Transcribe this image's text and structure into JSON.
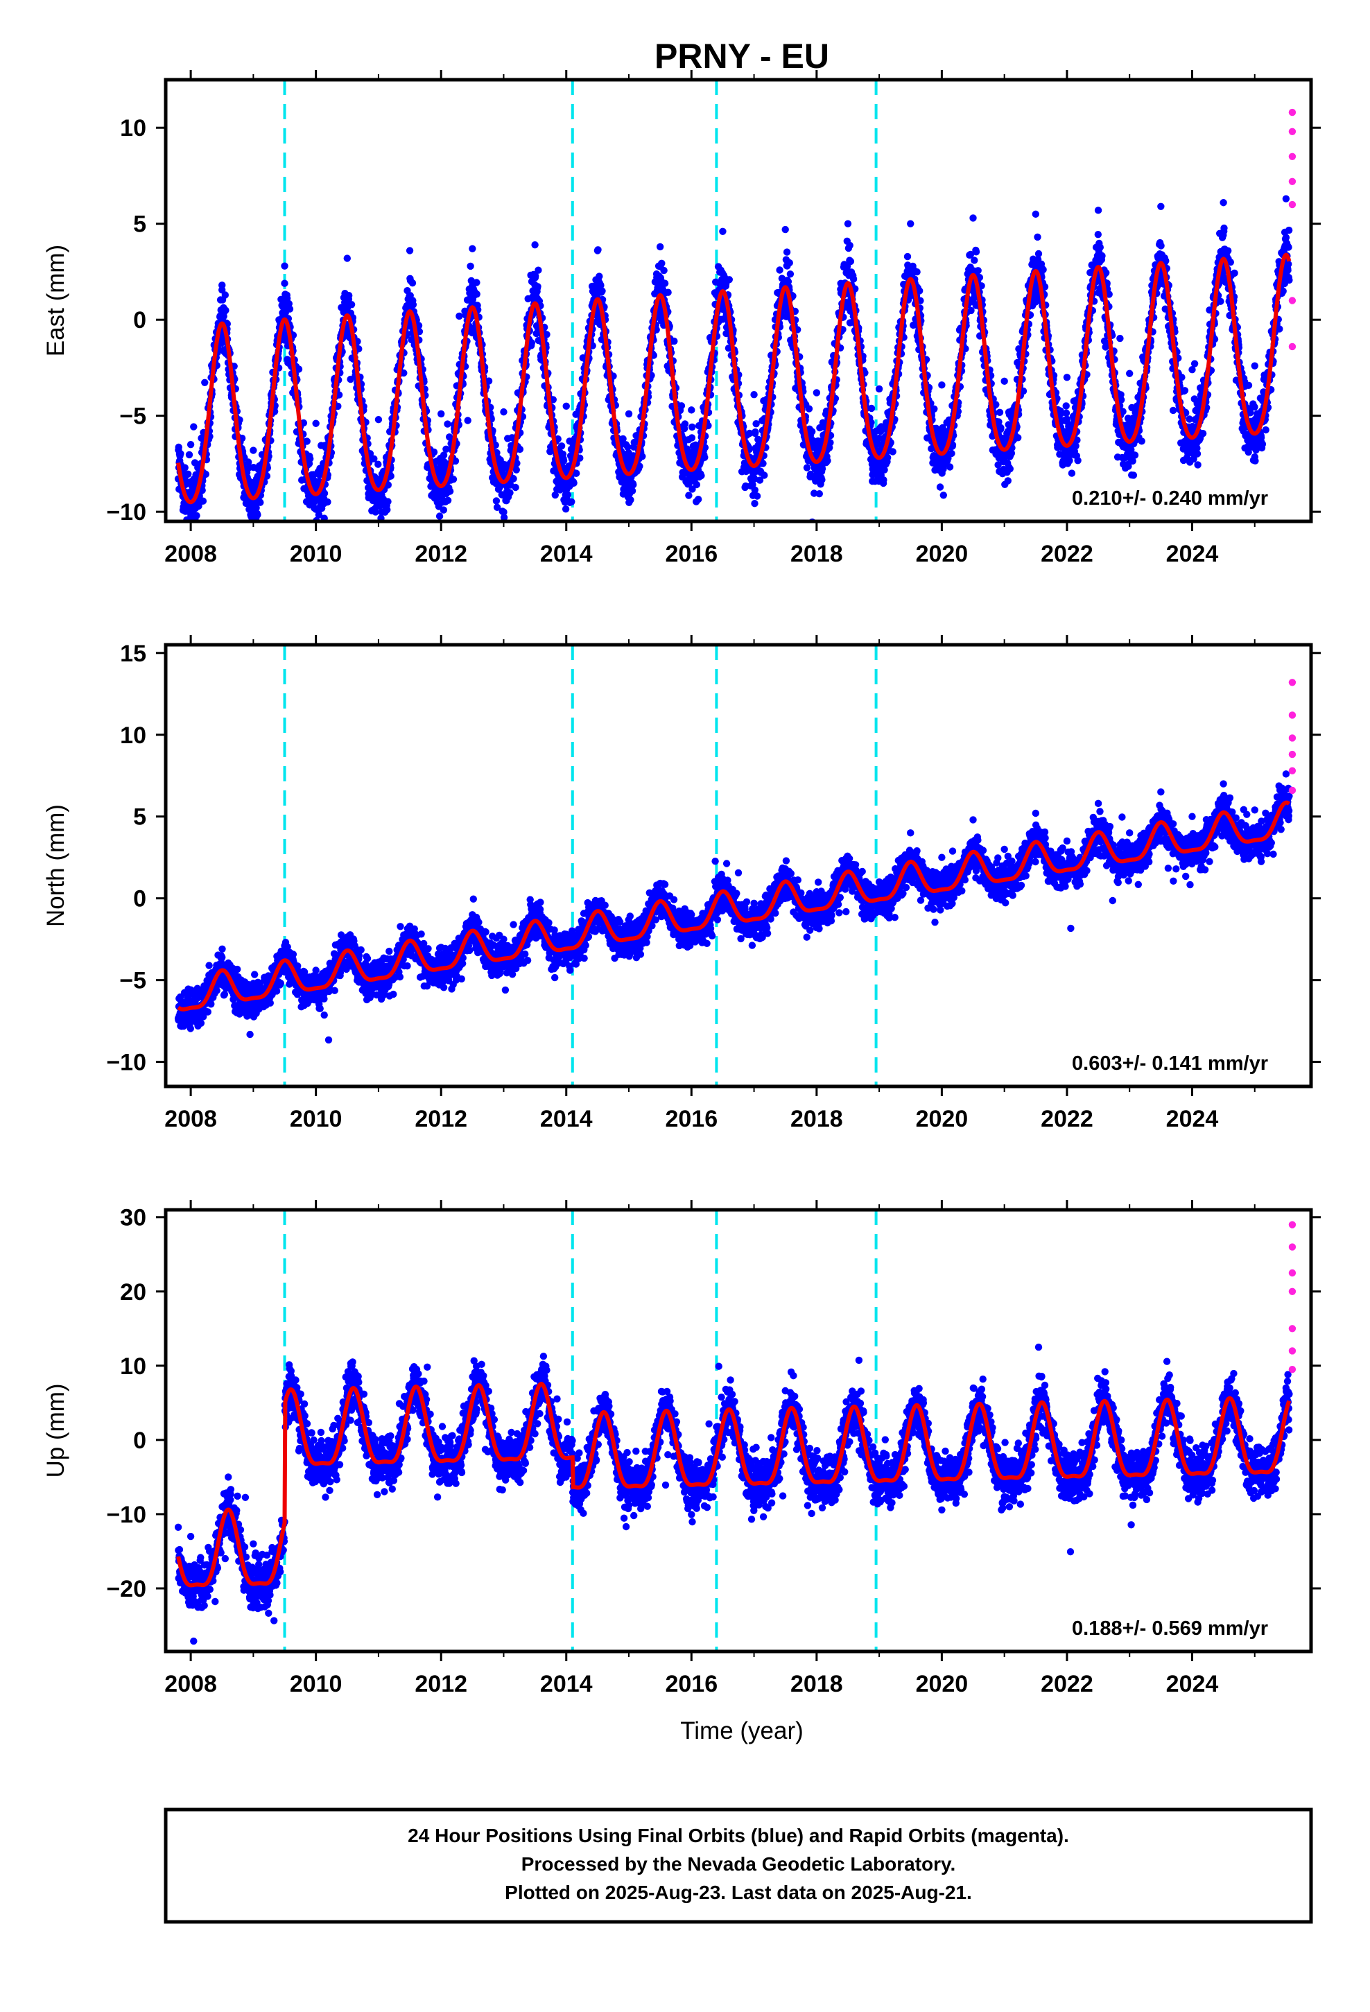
{
  "title": "PRNY - EU",
  "xlabel": "Time (year)",
  "footer": {
    "line1": "24 Hour Positions Using Final Orbits (blue) and Rapid Orbits (magenta).",
    "line2": "Processed by the Nevada Geodetic Laboratory.",
    "line3": "Plotted on 2025-Aug-23. Last data on 2025-Aug-21."
  },
  "colors": {
    "final_points": "#0000ff",
    "rapid_points": "#ff22dd",
    "model_fit": "#ee0000",
    "equipment_lines": "#00e5ee",
    "frame": "#000000"
  },
  "chart_data": [
    {
      "type": "scatter",
      "component": "East",
      "ylabel": "East (mm)",
      "xlim": [
        2007.6,
        2025.9
      ],
      "ylim": [
        -10.5,
        12.5
      ],
      "xticks": [
        "2008",
        "2010",
        "2012",
        "2014",
        "2016",
        "2018",
        "2020",
        "2022",
        "2024"
      ],
      "yticks": [
        "-10",
        "-5",
        "0",
        "5",
        "10"
      ],
      "rate_label": "0.210+/- 0.240 mm/yr",
      "equipment_changes": [
        2009.5,
        2014.1,
        2016.4,
        2018.95
      ],
      "model": {
        "trend_mm_per_yr": 0.21,
        "offset_mm": -5.5,
        "annual_amp_mm": 4.6,
        "annual_peak": 0.5,
        "semiannual_amp_mm": 0.6,
        "scatter_mm": 2.0
      },
      "data_span": [
        2007.8,
        2025.55
      ],
      "rapid_span": [
        2025.55,
        2025.64
      ],
      "series": [
        {
          "name": "Final Orbits (blue)",
          "values": [
            [
              2008.0,
              -6.5
            ],
            [
              2008.5,
              1.8
            ],
            [
              2009.0,
              -6.8
            ],
            [
              2009.5,
              2.8
            ],
            [
              2010.0,
              -5.4
            ],
            [
              2010.5,
              3.2
            ],
            [
              2011.0,
              -5.2
            ],
            [
              2011.5,
              3.6
            ],
            [
              2012.0,
              -4.9
            ],
            [
              2012.5,
              3.7
            ],
            [
              2013.0,
              -4.8
            ],
            [
              2013.5,
              3.9
            ],
            [
              2014.0,
              -4.5
            ],
            [
              2014.5,
              3.6
            ],
            [
              2015.0,
              -4.9
            ],
            [
              2015.5,
              3.8
            ],
            [
              2016.0,
              -4.7
            ],
            [
              2016.5,
              4.6
            ],
            [
              2017.0,
              -3.9
            ],
            [
              2017.5,
              4.7
            ],
            [
              2018.0,
              -3.8
            ],
            [
              2018.5,
              5.0
            ],
            [
              2019.0,
              -3.6
            ],
            [
              2019.5,
              5.0
            ],
            [
              2020.0,
              -3.4
            ],
            [
              2020.5,
              5.3
            ],
            [
              2021.0,
              -3.2
            ],
            [
              2021.5,
              5.5
            ],
            [
              2022.0,
              -3.0
            ],
            [
              2022.5,
              5.7
            ],
            [
              2023.0,
              -2.8
            ],
            [
              2023.5,
              5.9
            ],
            [
              2024.0,
              -2.6
            ],
            [
              2024.5,
              6.1
            ],
            [
              2025.0,
              -2.4
            ],
            [
              2025.5,
              6.3
            ]
          ]
        },
        {
          "name": "Rapid Orbits (magenta)",
          "values": [
            [
              2025.6,
              10.8
            ],
            [
              2025.6,
              9.8
            ],
            [
              2025.6,
              8.5
            ],
            [
              2025.6,
              7.2
            ],
            [
              2025.6,
              6.0
            ],
            [
              2025.6,
              1.0
            ],
            [
              2025.6,
              -1.4
            ]
          ]
        }
      ]
    },
    {
      "type": "scatter",
      "component": "North",
      "ylabel": "North (mm)",
      "xlim": [
        2007.6,
        2025.9
      ],
      "ylim": [
        -11.5,
        15.5
      ],
      "xticks": [
        "2008",
        "2010",
        "2012",
        "2014",
        "2016",
        "2018",
        "2020",
        "2022",
        "2024"
      ],
      "yticks": [
        "-10",
        "-5",
        "0",
        "5",
        "10",
        "15"
      ],
      "rate_label": "0.603+/- 0.141 mm/yr",
      "equipment_changes": [
        2009.5,
        2014.1,
        2016.4,
        2018.95
      ],
      "model": {
        "trend_mm_per_yr": 0.603,
        "offset_mm": -6.0,
        "annual_amp_mm": 1.0,
        "annual_peak": 0.5,
        "semiannual_amp_mm": 0.3,
        "scatter_mm": 1.4
      },
      "data_span": [
        2007.8,
        2025.55
      ],
      "rapid_span": [
        2025.55,
        2025.64
      ],
      "series": [
        {
          "name": "Final Orbits (blue)",
          "values": [
            [
              2008.0,
              -5.6
            ],
            [
              2008.5,
              -3.6
            ],
            [
              2009.0,
              -5.2
            ],
            [
              2009.5,
              -2.9
            ],
            [
              2010.0,
              -4.4
            ],
            [
              2010.5,
              -2.4
            ],
            [
              2011.0,
              -3.9
            ],
            [
              2011.5,
              -1.7
            ],
            [
              2012.0,
              -3.0
            ],
            [
              2012.5,
              -1.0
            ],
            [
              2013.0,
              -2.5
            ],
            [
              2013.5,
              -0.6
            ],
            [
              2014.0,
              -2.2
            ],
            [
              2014.5,
              -0.3
            ],
            [
              2015.0,
              -1.6
            ],
            [
              2015.5,
              0.2
            ],
            [
              2016.0,
              -1.0
            ],
            [
              2016.5,
              1.2
            ],
            [
              2017.0,
              -0.3
            ],
            [
              2017.5,
              1.8
            ],
            [
              2018.0,
              0.4
            ],
            [
              2018.5,
              2.5
            ],
            [
              2019.0,
              1.0
            ],
            [
              2019.5,
              4.0
            ],
            [
              2020.0,
              2.5
            ],
            [
              2020.5,
              4.8
            ],
            [
              2021.0,
              3.0
            ],
            [
              2021.5,
              5.2
            ],
            [
              2022.0,
              3.5
            ],
            [
              2022.5,
              5.8
            ],
            [
              2023.0,
              4.0
            ],
            [
              2023.5,
              6.5
            ],
            [
              2024.0,
              5.0
            ],
            [
              2024.5,
              7.0
            ],
            [
              2025.0,
              5.4
            ],
            [
              2025.5,
              7.6
            ]
          ]
        },
        {
          "name": "Rapid Orbits (magenta)",
          "values": [
            [
              2025.6,
              13.2
            ],
            [
              2025.6,
              11.2
            ],
            [
              2025.6,
              9.8
            ],
            [
              2025.6,
              8.8
            ],
            [
              2025.6,
              7.8
            ],
            [
              2025.6,
              6.6
            ]
          ]
        }
      ]
    },
    {
      "type": "scatter",
      "component": "Up",
      "ylabel": "Up (mm)",
      "xlim": [
        2007.6,
        2025.9
      ],
      "ylim": [
        -28.5,
        31.0
      ],
      "xticks": [
        "2008",
        "2010",
        "2012",
        "2014",
        "2016",
        "2018",
        "2020",
        "2022",
        "2024"
      ],
      "yticks": [
        "-20",
        "-10",
        "0",
        "10",
        "20",
        "30"
      ],
      "rate_label": "0.188+/- 0.569 mm/yr",
      "equipment_changes": [
        2009.5,
        2014.1,
        2016.4,
        2018.95
      ],
      "model": {
        "trend_mm_per_yr": 0.188,
        "offset_mm": 0.0,
        "annual_amp_mm": 5.0,
        "annual_peak": 0.6,
        "semiannual_amp_mm": 1.5,
        "scatter_mm": 4.2,
        "offsets": [
          [
            2009.5,
            17.0
          ],
          [
            2014.1,
            -4.0
          ]
        ],
        "early_level_mm": -16.0
      },
      "data_span": [
        2007.8,
        2025.55
      ],
      "rapid_span": [
        2025.55,
        2025.64
      ],
      "series": [
        {
          "name": "Final Orbits (blue)",
          "values": [
            [
              2008.0,
              -13.0
            ],
            [
              2008.3,
              -15.0
            ],
            [
              2008.6,
              -5.0
            ],
            [
              2009.0,
              -14.0
            ],
            [
              2009.3,
              -14.5
            ],
            [
              2009.6,
              8.0
            ],
            [
              2010.0,
              -2.0
            ],
            [
              2010.6,
              8.5
            ],
            [
              2011.0,
              -1.5
            ],
            [
              2011.6,
              8.5
            ],
            [
              2012.0,
              -1.0
            ],
            [
              2012.6,
              9.0
            ],
            [
              2013.0,
              -0.8
            ],
            [
              2013.6,
              9.0
            ],
            [
              2014.0,
              -0.5
            ],
            [
              2014.2,
              -5.0
            ],
            [
              2014.6,
              5.5
            ],
            [
              2015.0,
              -4.5
            ],
            [
              2015.6,
              5.5
            ],
            [
              2016.0,
              -4.5
            ],
            [
              2016.6,
              4.5
            ],
            [
              2017.0,
              -5.0
            ],
            [
              2017.6,
              5.0
            ],
            [
              2018.0,
              -5.0
            ],
            [
              2018.6,
              5.0
            ],
            [
              2019.0,
              -3.0
            ],
            [
              2019.6,
              5.5
            ],
            [
              2020.0,
              -4.0
            ],
            [
              2020.6,
              6.0
            ],
            [
              2021.0,
              -3.5
            ],
            [
              2021.6,
              6.0
            ],
            [
              2022.0,
              -3.0
            ],
            [
              2022.6,
              6.5
            ],
            [
              2023.0,
              -3.0
            ],
            [
              2023.6,
              7.0
            ],
            [
              2024.0,
              -3.0
            ],
            [
              2024.6,
              7.0
            ],
            [
              2025.0,
              -3.0
            ],
            [
              2025.5,
              7.0
            ]
          ]
        },
        {
          "name": "Rapid Orbits (magenta)",
          "values": [
            [
              2025.6,
              29.0
            ],
            [
              2025.6,
              26.0
            ],
            [
              2025.6,
              22.5
            ],
            [
              2025.6,
              20.0
            ],
            [
              2025.6,
              15.0
            ],
            [
              2025.6,
              12.0
            ],
            [
              2025.6,
              9.5
            ]
          ]
        }
      ]
    }
  ]
}
